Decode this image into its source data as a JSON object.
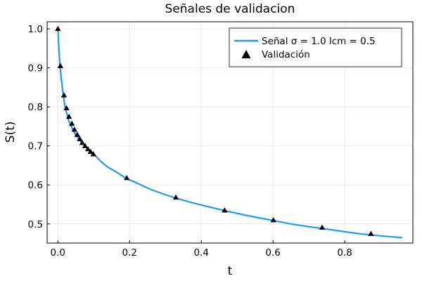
{
  "chart_data": {
    "type": "line",
    "title": "Señales de validacion",
    "xlabel": "t",
    "ylabel": "S(t)",
    "xlim": [
      -0.03,
      0.99
    ],
    "ylim": [
      0.451,
      1.018
    ],
    "x_ticks": [
      0.0,
      0.2,
      0.4,
      0.6,
      0.8
    ],
    "x_tick_labels": [
      "0.0",
      "0.2",
      "0.4",
      "0.6",
      "0.8"
    ],
    "y_ticks": [
      0.5,
      0.6,
      0.7,
      0.8,
      0.9,
      1.0
    ],
    "y_tick_labels": [
      "0.5",
      "0.6",
      "0.7",
      "0.8",
      "0.9",
      "1.0"
    ],
    "grid": true,
    "legend_position": "top-right",
    "series": [
      {
        "name": "Señal σ = 1.0 lcm = 0.5",
        "kind": "line",
        "color": "#1f9bf0",
        "x": [
          0.0,
          0.003,
          0.006,
          0.01,
          0.015,
          0.02,
          0.03,
          0.04,
          0.05,
          0.06,
          0.07,
          0.08,
          0.09,
          0.1,
          0.12,
          0.14,
          0.16,
          0.19,
          0.22,
          0.26,
          0.3,
          0.33,
          0.38,
          0.42,
          0.47,
          0.52,
          0.57,
          0.6,
          0.65,
          0.7,
          0.74,
          0.8,
          0.85,
          0.87,
          0.92,
          0.96
        ],
        "y": [
          1.0,
          0.945,
          0.905,
          0.868,
          0.83,
          0.8,
          0.765,
          0.745,
          0.728,
          0.715,
          0.705,
          0.696,
          0.688,
          0.679,
          0.66,
          0.645,
          0.635,
          0.617,
          0.605,
          0.588,
          0.575,
          0.566,
          0.553,
          0.544,
          0.533,
          0.523,
          0.514,
          0.509,
          0.5,
          0.493,
          0.488,
          0.48,
          0.474,
          0.472,
          0.468,
          0.465
        ]
      },
      {
        "name": "Validación",
        "kind": "scatter",
        "marker": "triangle",
        "color": "#000000",
        "x": [
          0.0,
          0.007,
          0.017,
          0.024,
          0.031,
          0.039,
          0.046,
          0.054,
          0.061,
          0.068,
          0.076,
          0.084,
          0.091,
          0.099,
          0.192,
          0.329,
          0.465,
          0.601,
          0.737,
          0.873
        ],
        "y": [
          1.0,
          0.905,
          0.83,
          0.797,
          0.775,
          0.757,
          0.742,
          0.729,
          0.718,
          0.708,
          0.7,
          0.692,
          0.685,
          0.679,
          0.618,
          0.568,
          0.535,
          0.51,
          0.491,
          0.475
        ]
      }
    ]
  }
}
